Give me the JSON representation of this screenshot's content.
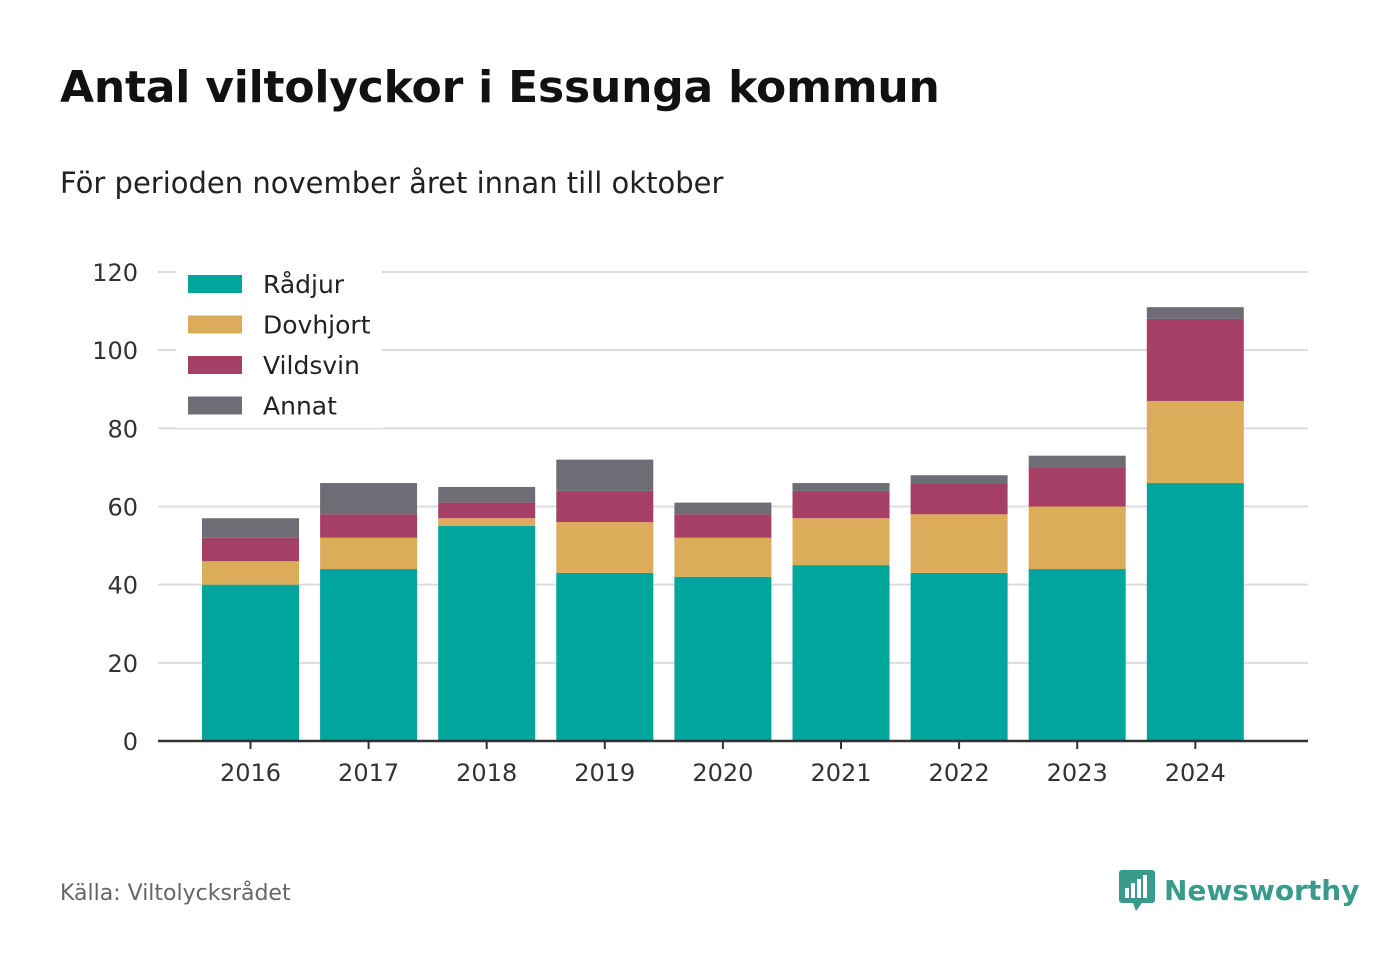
{
  "colors": {
    "Rådjur": "#00a59b",
    "Dovhjort": "#dbad5a",
    "Vildsvin": "#a53f66",
    "Annat": "#6e6d75",
    "brand": "#3a9a8c"
  },
  "source": "Källa: Viltolycksrådet",
  "brand": {
    "name": "Newsworthy",
    "icon": "bar-chart-badge-icon"
  },
  "chart_data": {
    "type": "bar",
    "stacked": true,
    "title": "Antal viltolyckor i Essunga kommun",
    "subtitle": "För perioden november året innan till oktober",
    "xlabel": "",
    "ylabel": "",
    "categories": [
      "2016",
      "2017",
      "2018",
      "2019",
      "2020",
      "2021",
      "2022",
      "2023",
      "2024"
    ],
    "series": [
      {
        "name": "Rådjur",
        "values": [
          40,
          44,
          55,
          43,
          42,
          45,
          43,
          44,
          66
        ]
      },
      {
        "name": "Dovhjort",
        "values": [
          6,
          8,
          2,
          13,
          10,
          12,
          15,
          16,
          21
        ]
      },
      {
        "name": "Vildsvin",
        "values": [
          6,
          6,
          4,
          8,
          6,
          7,
          8,
          10,
          21
        ]
      },
      {
        "name": "Annat",
        "values": [
          5,
          8,
          4,
          8,
          3,
          2,
          2,
          3,
          3
        ]
      }
    ],
    "ylim": [
      0,
      120
    ],
    "yticks": [
      0,
      20,
      40,
      60,
      80,
      100,
      120
    ],
    "grid": true,
    "legend": "top-left"
  }
}
